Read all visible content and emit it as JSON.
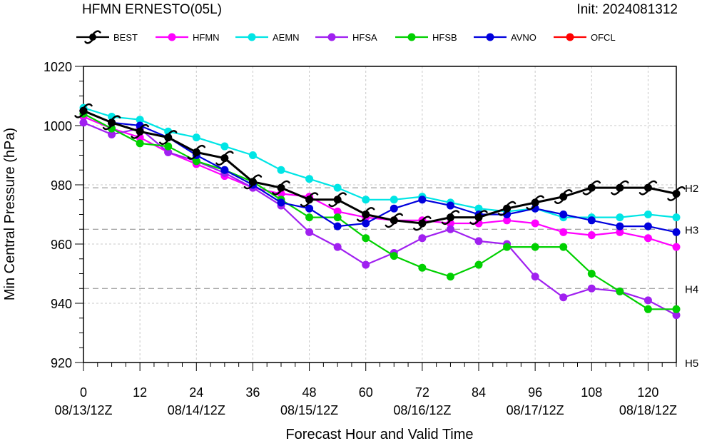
{
  "chart_data": {
    "type": "line",
    "title": "HFMN ERNESTO(05L)",
    "init_label": "Init: 2024081312",
    "xlabel": "Forecast Hour and Valid Time",
    "ylabel": "Min Central Pressure (hPa)",
    "xlim": [
      0,
      126
    ],
    "ylim": [
      920,
      1020
    ],
    "x_ticks": [
      0,
      12,
      24,
      36,
      48,
      60,
      72,
      84,
      96,
      108,
      120
    ],
    "x_tick_dates": {
      "0": "08/13/12Z",
      "24": "08/14/12Z",
      "48": "08/15/12Z",
      "72": "08/16/12Z",
      "96": "08/17/12Z",
      "120": "08/18/12Z"
    },
    "y_ticks": [
      920,
      940,
      960,
      980,
      1000,
      1020
    ],
    "category_lines": [
      {
        "label": "H2",
        "value": 979
      },
      {
        "label": "H3",
        "value": 965
      },
      {
        "label": "H4",
        "value": 945
      },
      {
        "label": "H5",
        "value": 920
      }
    ],
    "legend": [
      "BEST",
      "HFMN",
      "AEMN",
      "HFSA",
      "HFSB",
      "AVNO",
      "OFCL"
    ],
    "grid": true,
    "series": [
      {
        "name": "HFMN",
        "color": "#ff00ff",
        "x": [
          0,
          6,
          12,
          18,
          24,
          30,
          36,
          42,
          48,
          54,
          60,
          66,
          72,
          78,
          84,
          90,
          96,
          102,
          108,
          114,
          120,
          126
        ],
        "y": [
          1003,
          999,
          996,
          991,
          987,
          983,
          979,
          977,
          976,
          971,
          969,
          968,
          968,
          967,
          967,
          968,
          967,
          964,
          963,
          964,
          962,
          959
        ]
      },
      {
        "name": "AEMN",
        "color": "#00e5e5",
        "x": [
          0,
          6,
          12,
          18,
          24,
          30,
          36,
          42,
          48,
          54,
          60,
          66,
          72,
          78,
          84,
          90,
          96,
          102,
          108,
          114,
          120,
          126
        ],
        "y": [
          1006,
          1003,
          1002,
          998,
          996,
          993,
          990,
          985,
          982,
          979,
          975,
          975,
          976,
          974,
          972,
          971,
          972,
          969,
          969,
          969,
          970,
          969
        ]
      },
      {
        "name": "HFSA",
        "color": "#a020f0",
        "x": [
          0,
          6,
          12,
          18,
          24,
          30,
          36,
          42,
          48,
          54,
          60,
          66,
          72,
          78,
          84,
          90,
          96,
          102,
          108,
          114,
          120,
          126
        ],
        "y": [
          1001,
          997,
          999,
          991,
          988,
          984,
          979,
          973,
          964,
          959,
          953,
          957,
          962,
          965,
          961,
          960,
          949,
          942,
          945,
          944,
          941,
          936
        ]
      },
      {
        "name": "HFSB",
        "color": "#00d000",
        "x": [
          0,
          6,
          12,
          18,
          24,
          30,
          36,
          42,
          48,
          54,
          60,
          66,
          72,
          78,
          84,
          90,
          96,
          102,
          108,
          114,
          120,
          126
        ],
        "y": [
          1004,
          999,
          994,
          993,
          988,
          985,
          981,
          975,
          969,
          969,
          962,
          956,
          952,
          949,
          953,
          959,
          959,
          959,
          950,
          944,
          938,
          938
        ]
      },
      {
        "name": "AVNO",
        "color": "#0000dd",
        "x": [
          0,
          6,
          12,
          18,
          24,
          30,
          36,
          42,
          48,
          54,
          60,
          66,
          72,
          78,
          84,
          90,
          96,
          102,
          108,
          114,
          120,
          126
        ],
        "y": [
          1005,
          1001,
          1000,
          996,
          990,
          985,
          980,
          974,
          972,
          966,
          967,
          972,
          975,
          973,
          970,
          970,
          972,
          970,
          968,
          966,
          966,
          964
        ]
      },
      {
        "name": "BEST",
        "color": "#000000",
        "x": [
          0,
          6,
          12,
          18,
          24,
          30,
          36,
          42,
          48,
          54,
          60,
          66,
          72,
          78,
          84,
          90,
          96,
          102,
          108,
          114,
          120,
          126
        ],
        "y": [
          1005,
          1001,
          998,
          996,
          991,
          989,
          981,
          979,
          975,
          975,
          970,
          968,
          967,
          969,
          969,
          972,
          974,
          976,
          979,
          979,
          979,
          977
        ]
      }
    ],
    "ofcl_color": "#ff0000"
  }
}
